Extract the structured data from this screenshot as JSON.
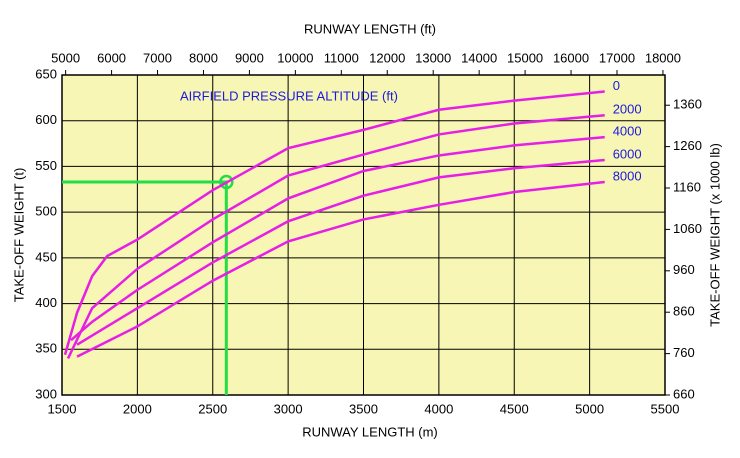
{
  "chart_data": {
    "type": "line",
    "x_label": "RUNWAY LENGTH (m)",
    "x2_label": "RUNWAY LENGTH (ft)",
    "y_label": "TAKE-OFF WEIGHT (t)",
    "y2_label": "TAKE-OFF WEIGHT (x 1000 lb)",
    "legend_title": "AIRFIELD PRESSURE ALTITUDE (ft)",
    "xlim": [
      1500,
      5500
    ],
    "xticks": [
      1500,
      2000,
      2500,
      3000,
      3500,
      4000,
      4500,
      5000,
      5500
    ],
    "x2lim": [
      4921,
      18045
    ],
    "x2ticks": [
      5000,
      6000,
      7000,
      8000,
      9000,
      10000,
      11000,
      12000,
      13000,
      14000,
      15000,
      16000,
      17000,
      18000
    ],
    "ylim": [
      300,
      650
    ],
    "yticks": [
      300,
      350,
      400,
      450,
      500,
      550,
      600,
      650
    ],
    "y2lim": [
      660,
      1433
    ],
    "y2ticks": [
      660,
      760,
      860,
      960,
      1060,
      1160,
      1260,
      1360
    ],
    "grid": true,
    "background": "#f8f6b4",
    "series": [
      {
        "name": "0",
        "color": "#e61ee6",
        "x": [
          1520,
          1600,
          1700,
          1800,
          2000,
          2500,
          3000,
          3500,
          4000,
          4500,
          5100
        ],
        "values": [
          344,
          390,
          430,
          452,
          470,
          524,
          570,
          590,
          612,
          622,
          632
        ]
      },
      {
        "name": "2000",
        "color": "#e61ee6",
        "x": [
          1540,
          1700,
          2000,
          2500,
          3000,
          3500,
          4000,
          4500,
          5100
        ],
        "values": [
          340,
          395,
          438,
          492,
          540,
          563,
          585,
          597,
          606
        ]
      },
      {
        "name": "4000",
        "color": "#e61ee6",
        "x": [
          1560,
          1700,
          2000,
          2500,
          3000,
          3500,
          4000,
          4500,
          5100
        ],
        "values": [
          360,
          380,
          415,
          467,
          515,
          545,
          562,
          573,
          582
        ]
      },
      {
        "name": "6000",
        "color": "#e61ee6",
        "x": [
          1600,
          2000,
          2500,
          3000,
          3500,
          4000,
          4500,
          5100
        ],
        "values": [
          355,
          395,
          445,
          490,
          518,
          538,
          548,
          557
        ]
      },
      {
        "name": "8000",
        "color": "#e61ee6",
        "x": [
          1600,
          2000,
          2500,
          3000,
          3500,
          4000,
          4500,
          5100
        ],
        "values": [
          342,
          375,
          425,
          468,
          492,
          508,
          522,
          533
        ]
      }
    ],
    "example": {
      "x": 2590,
      "y": 533,
      "color": "#22dd44"
    }
  }
}
